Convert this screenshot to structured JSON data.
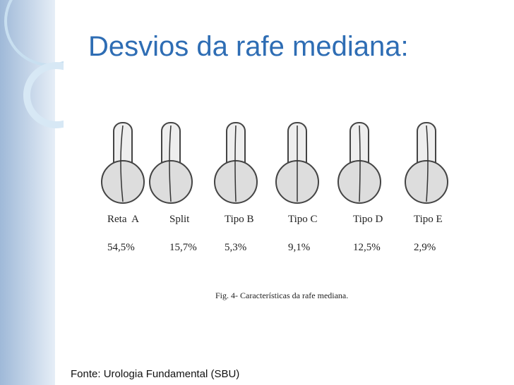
{
  "slide": {
    "title": "Desvios da rafe mediana:",
    "figure": {
      "items": [
        {
          "label": "Reta  A",
          "percent": "54,5%"
        },
        {
          "label": "Split",
          "percent": "15,7%"
        },
        {
          "label": "Tipo B",
          "percent": "5,3%"
        },
        {
          "label": "Tipo C",
          "percent": "9,1%"
        },
        {
          "label": "Tipo D",
          "percent": "12,5%"
        },
        {
          "label": "Tipo E",
          "percent": "2,9%"
        }
      ],
      "caption": "Fig. 4- Características da rafe mediana."
    },
    "source": "Fonte: Urologia Fundamental (SBU)"
  }
}
